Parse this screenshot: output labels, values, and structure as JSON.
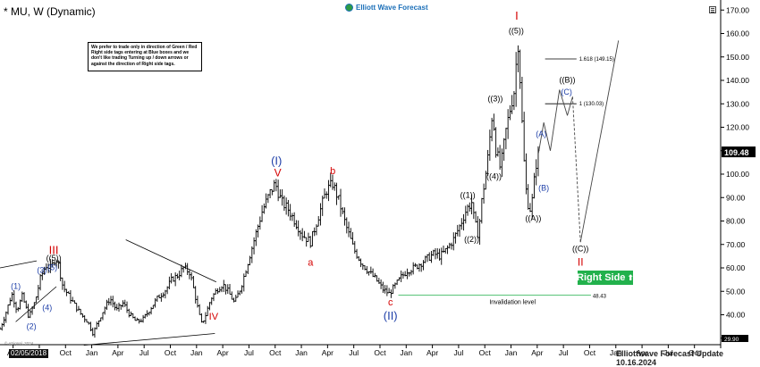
{
  "header": {
    "title": "* MU, W (Dynamic)",
    "brand": "Elliott Wave Forecast"
  },
  "note": {
    "text": "We prefer to trade only in direction of Green / Red Right side tags entering at Blue boxes and we don't like trading Turning up / down arrows or against the direction of Right side tags."
  },
  "footer": {
    "update": "Elliottwave Forecast Update 10.16.2024",
    "copyright": "© eSignal, 2024",
    "date_badge": "02/05/2018"
  },
  "right_side_tag": {
    "label": "Right Side",
    "color": "#22b14c"
  },
  "chart_data": {
    "type": "candlestick",
    "symbol": "MU",
    "interval": "W",
    "ylim": [
      28,
      172
    ],
    "ylabel_ticks": [
      30,
      40,
      50,
      60,
      70,
      80,
      90,
      100,
      110,
      120,
      130,
      140,
      150,
      160,
      170
    ],
    "x_ticks": [
      {
        "t": 0.5,
        "label": "Apr"
      },
      {
        "t": 1.5,
        "label": "Jul"
      },
      {
        "t": 2.5,
        "label": "Oct"
      },
      {
        "t": 3.5,
        "label": "Jan"
      },
      {
        "t": 4.5,
        "label": "Apr"
      },
      {
        "t": 5.5,
        "label": "Jul"
      },
      {
        "t": 6.5,
        "label": "Oct"
      },
      {
        "t": 7.5,
        "label": "Jan"
      },
      {
        "t": 8.5,
        "label": "Apr"
      },
      {
        "t": 9.5,
        "label": "Jul"
      },
      {
        "t": 10.5,
        "label": "Oct"
      },
      {
        "t": 11.5,
        "label": "Jan"
      },
      {
        "t": 12.5,
        "label": "Apr"
      },
      {
        "t": 13.5,
        "label": "Jul"
      },
      {
        "t": 14.5,
        "label": "Oct"
      },
      {
        "t": 15.5,
        "label": "Jan"
      },
      {
        "t": 16.5,
        "label": "Apr"
      },
      {
        "t": 17.5,
        "label": "Jul"
      },
      {
        "t": 18.5,
        "label": "Oct"
      },
      {
        "t": 19.5,
        "label": "Jan"
      },
      {
        "t": 20.5,
        "label": "Apr"
      },
      {
        "t": 21.5,
        "label": "Jul"
      },
      {
        "t": 22.5,
        "label": "Oct"
      },
      {
        "t": 23.5,
        "label": "Jan"
      },
      {
        "t": 24.5,
        "label": "Apr"
      },
      {
        "t": 25.5,
        "label": "Jul"
      },
      {
        "t": 26.5,
        "label": "Oct"
      }
    ],
    "price_path": [
      [
        0,
        34
      ],
      [
        0.2,
        40
      ],
      [
        0.45,
        49
      ],
      [
        0.65,
        42
      ],
      [
        0.85,
        48
      ],
      [
        1.1,
        39
      ],
      [
        1.35,
        46
      ],
      [
        1.55,
        56
      ],
      [
        1.75,
        61
      ],
      [
        1.95,
        60
      ],
      [
        2.1,
        64
      ],
      [
        2.2,
        63
      ],
      [
        2.4,
        52
      ],
      [
        2.8,
        45
      ],
      [
        3.1,
        40
      ],
      [
        3.35,
        37
      ],
      [
        3.55,
        32
      ],
      [
        3.7,
        36
      ],
      [
        3.95,
        42
      ],
      [
        4.2,
        47
      ],
      [
        4.45,
        42
      ],
      [
        4.7,
        45
      ],
      [
        4.95,
        40
      ],
      [
        5.2,
        37
      ],
      [
        5.45,
        38
      ],
      [
        5.7,
        42
      ],
      [
        6.0,
        47
      ],
      [
        6.35,
        51
      ],
      [
        6.55,
        55
      ],
      [
        6.8,
        57
      ],
      [
        7.0,
        60
      ],
      [
        7.25,
        58
      ],
      [
        7.45,
        48
      ],
      [
        7.6,
        40
      ],
      [
        7.7,
        36
      ],
      [
        7.85,
        40
      ],
      [
        8.05,
        47
      ],
      [
        8.3,
        51
      ],
      [
        8.5,
        53
      ],
      [
        8.7,
        50
      ],
      [
        8.95,
        45
      ],
      [
        9.2,
        52
      ],
      [
        9.4,
        60
      ],
      [
        9.7,
        72
      ],
      [
        10.0,
        84
      ],
      [
        10.3,
        92
      ],
      [
        10.5,
        96
      ],
      [
        10.75,
        88
      ],
      [
        11.0,
        85
      ],
      [
        11.3,
        79
      ],
      [
        11.55,
        74
      ],
      [
        11.85,
        71
      ],
      [
        12.15,
        82
      ],
      [
        12.45,
        93
      ],
      [
        12.7,
        96
      ],
      [
        12.95,
        88
      ],
      [
        13.2,
        78
      ],
      [
        13.5,
        68
      ],
      [
        13.8,
        62
      ],
      [
        14.1,
        58
      ],
      [
        14.35,
        55
      ],
      [
        14.6,
        51
      ],
      [
        14.85,
        49
      ],
      [
        15.05,
        52
      ],
      [
        15.3,
        56
      ],
      [
        15.55,
        59
      ],
      [
        15.8,
        60
      ],
      [
        16.05,
        62
      ],
      [
        16.3,
        64
      ],
      [
        16.55,
        66
      ],
      [
        16.8,
        65
      ],
      [
        17.05,
        68
      ],
      [
        17.3,
        72
      ],
      [
        17.55,
        78
      ],
      [
        17.8,
        85
      ],
      [
        18.0,
        88
      ],
      [
        18.1,
        80
      ],
      [
        18.25,
        74
      ],
      [
        18.4,
        90
      ],
      [
        18.6,
        105
      ],
      [
        18.8,
        128
      ],
      [
        18.9,
        112
      ],
      [
        19.1,
        102
      ],
      [
        19.3,
        118
      ],
      [
        19.5,
        130
      ],
      [
        19.65,
        137
      ],
      [
        19.75,
        160
      ],
      [
        19.85,
        140
      ],
      [
        19.95,
        115
      ],
      [
        20.05,
        95
      ],
      [
        20.2,
        84
      ],
      [
        20.3,
        88
      ],
      [
        20.45,
        104
      ],
      [
        20.55,
        109
      ]
    ],
    "projection": [
      {
        "t": 20.55,
        "y": 109
      },
      {
        "t": 20.75,
        "y": 122
      },
      {
        "t": 21.0,
        "y": 110
      },
      {
        "t": 21.35,
        "y": 136
      },
      {
        "t": 21.65,
        "y": 125
      },
      {
        "t": 21.85,
        "y": 133
      },
      {
        "t": 22.15,
        "y": 71
      },
      {
        "t": 23.6,
        "y": 157
      }
    ],
    "levels": [
      {
        "name": "1.618",
        "label": "1.618 (149.15)",
        "value": 149.15,
        "t0": 20.8,
        "t1": 22.0
      },
      {
        "name": "1",
        "label": "1 (130.03)",
        "value": 130.03,
        "t0": 20.8,
        "t1": 22.0
      },
      {
        "name": "invalidation",
        "label": "Invalidation level",
        "value": 48.43,
        "value_label": "48.43",
        "t0": 15.2,
        "t1": 22.55
      }
    ],
    "last_price": {
      "value": 109.48,
      "label": "109.48"
    },
    "bottom_marker": {
      "value": 29.9,
      "label": "29.90"
    },
    "trendlines": [
      {
        "name": "wave-III-upper-line",
        "t0": 0.0,
        "y0": 60,
        "t1": 1.4,
        "y1": 63
      },
      {
        "name": "wave-III-lower-line",
        "t0": 0.6,
        "y0": 37,
        "t1": 2.15,
        "y1": 52
      },
      {
        "name": "triangle-upper-line",
        "t0": 4.8,
        "y0": 72,
        "t1": 8.25,
        "y1": 54
      },
      {
        "name": "triangle-lower-line",
        "t0": 3.2,
        "y0": 27,
        "t1": 8.2,
        "y1": 32
      }
    ],
    "labels": [
      {
        "name": "wave-III-red",
        "text": "III",
        "t": 2.05,
        "y": 66,
        "color": "#d40000",
        "size": 13
      },
      {
        "name": "wave-5-circled-double",
        "text": "((5))",
        "t": 2.05,
        "y": 63,
        "color": "#000000",
        "size": 9
      },
      {
        "name": "wave-5-blue",
        "text": "(5)",
        "t": 2.0,
        "y": 59,
        "color": "#1e3fa8",
        "size": 9
      },
      {
        "name": "wave-3-blue",
        "text": "(3)",
        "t": 1.6,
        "y": 58,
        "color": "#1e3fa8",
        "size": 9
      },
      {
        "name": "wave-1-blue",
        "text": "(1)",
        "t": 0.6,
        "y": 51,
        "color": "#1e3fa8",
        "size": 9
      },
      {
        "name": "wave-4-blue",
        "text": "(4)",
        "t": 1.8,
        "y": 42,
        "color": "#1e3fa8",
        "size": 9
      },
      {
        "name": "wave-2-blue",
        "text": "(2)",
        "t": 1.2,
        "y": 34,
        "color": "#1e3fa8",
        "size": 9
      },
      {
        "name": "wave-IV-red",
        "text": "IV",
        "t": 8.15,
        "y": 38,
        "color": "#d40000",
        "size": 11
      },
      {
        "name": "wave-I-blue",
        "text": "(I)",
        "t": 10.55,
        "y": 104,
        "color": "#1e3fa8",
        "size": 13
      },
      {
        "name": "wave-V-red",
        "text": "V",
        "t": 10.6,
        "y": 99,
        "color": "#d40000",
        "size": 12
      },
      {
        "name": "wave-b-red",
        "text": "b",
        "t": 12.7,
        "y": 100,
        "color": "#d40000",
        "size": 11
      },
      {
        "name": "wave-a-red",
        "text": "a",
        "t": 11.85,
        "y": 61,
        "color": "#d40000",
        "size": 11
      },
      {
        "name": "wave-c-red",
        "text": "c",
        "t": 14.9,
        "y": 44,
        "color": "#d40000",
        "size": 11
      },
      {
        "name": "wave-II-blue",
        "text": "(II)",
        "t": 14.9,
        "y": 38,
        "color": "#1e3fa8",
        "size": 13
      },
      {
        "name": "wave-1-double-black",
        "text": "((1))",
        "t": 17.85,
        "y": 90,
        "color": "#000000",
        "size": 9
      },
      {
        "name": "wave-2-double-black",
        "text": "((2))",
        "t": 18.0,
        "y": 71,
        "color": "#000000",
        "size": 9
      },
      {
        "name": "wave-4-double-black",
        "text": "((4))",
        "t": 18.85,
        "y": 98,
        "color": "#000000",
        "size": 9
      },
      {
        "name": "wave-3-double-black",
        "text": "((3))",
        "t": 18.9,
        "y": 131,
        "color": "#000000",
        "size": 9
      },
      {
        "name": "wave-I-red-top",
        "text": "I",
        "t": 19.72,
        "y": 166,
        "color": "#d40000",
        "size": 13
      },
      {
        "name": "wave-5-double-top",
        "text": "((5))",
        "t": 19.7,
        "y": 160,
        "color": "#000000",
        "size": 9
      },
      {
        "name": "wave-A-blue",
        "text": "(A)",
        "t": 20.65,
        "y": 116,
        "color": "#1e3fa8",
        "size": 9
      },
      {
        "name": "wave-B-blue",
        "text": "(B)",
        "t": 20.75,
        "y": 93,
        "color": "#1e3fa8",
        "size": 9
      },
      {
        "name": "wave-A-double-black",
        "text": "((A))",
        "t": 20.35,
        "y": 80,
        "color": "#000000",
        "size": 9
      },
      {
        "name": "wave-B-double-black",
        "text": "((B))",
        "t": 21.65,
        "y": 139,
        "color": "#000000",
        "size": 9
      },
      {
        "name": "wave-C-blue",
        "text": "(C)",
        "t": 21.62,
        "y": 134,
        "color": "#1e3fa8",
        "size": 9
      },
      {
        "name": "wave-C-double-black",
        "text": "((C))",
        "t": 22.15,
        "y": 67,
        "color": "#000000",
        "size": 9
      },
      {
        "name": "wave-II-red-target",
        "text": "II",
        "t": 22.15,
        "y": 61,
        "color": "#d40000",
        "size": 12
      }
    ]
  }
}
